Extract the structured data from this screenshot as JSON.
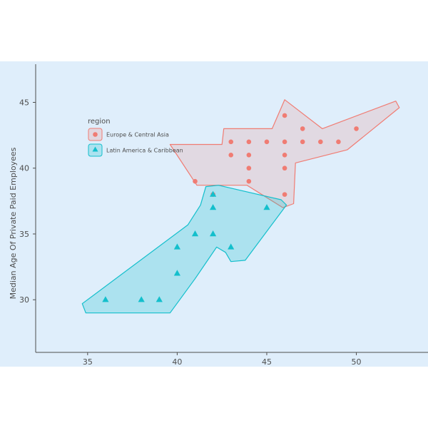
{
  "chart_data": {
    "type": "scatter",
    "xlabel": "",
    "ylabel": "Median Age Of Private Paid Employees",
    "xlim": [
      32.1,
      54.0
    ],
    "ylim": [
      26.0,
      47.9
    ],
    "x_ticks": [
      "35",
      "40",
      "45",
      "50"
    ],
    "y_ticks": [
      "30",
      "35",
      "40",
      "45"
    ],
    "grid": false,
    "legend": {
      "title": "region",
      "placement": "top-left"
    },
    "colors": {
      "background": "#dfeefb",
      "europe": "#f07c73",
      "latam": "#13bfcc"
    },
    "series": [
      {
        "name": "Europe & Central Asia",
        "marker": "circle",
        "points": [
          [
            41,
            39
          ],
          [
            42,
            38
          ],
          [
            43,
            42
          ],
          [
            43,
            41
          ],
          [
            44,
            42
          ],
          [
            44,
            41
          ],
          [
            44,
            40
          ],
          [
            44,
            39
          ],
          [
            45,
            42
          ],
          [
            46,
            44
          ],
          [
            46,
            42
          ],
          [
            46,
            41
          ],
          [
            46,
            40
          ],
          [
            46,
            38
          ],
          [
            47,
            43
          ],
          [
            47,
            42
          ],
          [
            48,
            42
          ],
          [
            49,
            42
          ],
          [
            50,
            43
          ]
        ],
        "hull": [
          [
            39.6,
            41.8
          ],
          [
            40.4,
            41.8
          ],
          [
            42.5,
            41.8
          ],
          [
            42.6,
            43.0
          ],
          [
            45.3,
            43.0
          ],
          [
            46.0,
            45.2
          ],
          [
            48.1,
            43.0
          ],
          [
            52.2,
            45.1
          ],
          [
            52.4,
            44.6
          ],
          [
            49.5,
            41.4
          ],
          [
            46.6,
            40.4
          ],
          [
            46.5,
            37.3
          ],
          [
            45.9,
            37.0
          ],
          [
            43.9,
            38.7
          ],
          [
            41.1,
            38.7
          ]
        ]
      },
      {
        "name": "Latin America & Caribbean",
        "marker": "triangle",
        "points": [
          [
            36,
            30
          ],
          [
            38,
            30
          ],
          [
            39,
            30
          ],
          [
            40,
            34
          ],
          [
            40,
            32
          ],
          [
            41,
            35
          ],
          [
            42,
            38
          ],
          [
            42,
            37
          ],
          [
            42,
            35
          ],
          [
            43,
            34
          ],
          [
            45,
            37
          ]
        ],
        "hull": [
          [
            34.9,
            29.0
          ],
          [
            39.6,
            29.0
          ],
          [
            41.0,
            31.6
          ],
          [
            42.2,
            34.0
          ],
          [
            42.7,
            33.6
          ],
          [
            43.0,
            32.9
          ],
          [
            43.8,
            33.0
          ],
          [
            46.1,
            37.2
          ],
          [
            45.8,
            37.6
          ],
          [
            42.3,
            38.7
          ],
          [
            41.6,
            38.6
          ],
          [
            41.3,
            37.2
          ],
          [
            40.6,
            35.7
          ],
          [
            34.7,
            29.7
          ]
        ]
      }
    ]
  }
}
